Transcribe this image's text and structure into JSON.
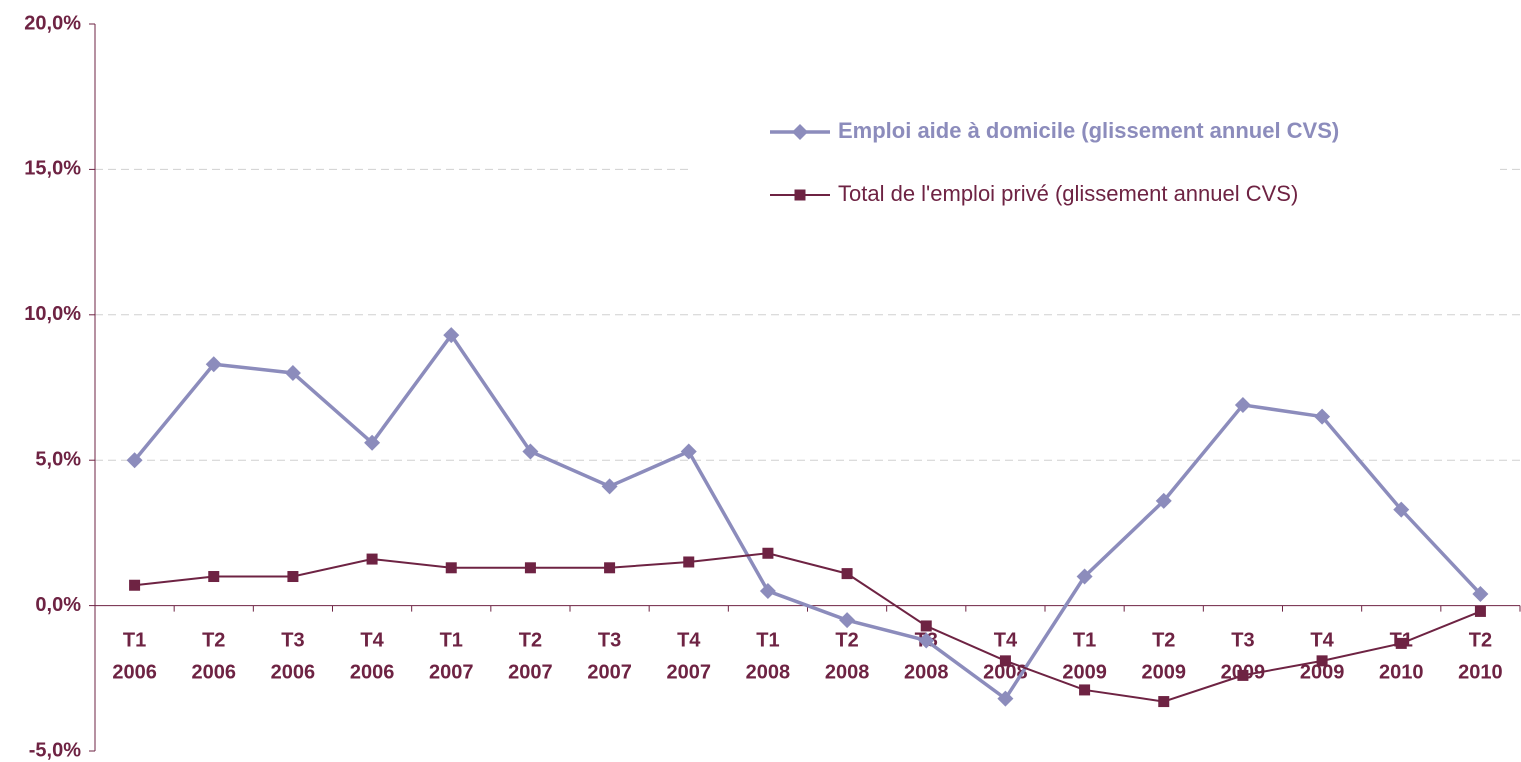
{
  "chart_data": {
    "type": "line",
    "categories": [
      [
        "T1",
        "2006"
      ],
      [
        "T2",
        "2006"
      ],
      [
        "T3",
        "2006"
      ],
      [
        "T4",
        "2006"
      ],
      [
        "T1",
        "2007"
      ],
      [
        "T2",
        "2007"
      ],
      [
        "T3",
        "2007"
      ],
      [
        "T4",
        "2007"
      ],
      [
        "T1",
        "2008"
      ],
      [
        "T2",
        "2008"
      ],
      [
        "T3",
        "2008"
      ],
      [
        "T4",
        "2008"
      ],
      [
        "T1",
        "2009"
      ],
      [
        "T2",
        "2009"
      ],
      [
        "T3",
        "2009"
      ],
      [
        "T4",
        "2009"
      ],
      [
        "T1",
        "2010"
      ],
      [
        "T2",
        "2010"
      ]
    ],
    "series": [
      {
        "name": "Emploi aide à domicile (glissement annuel CVS)",
        "color": "#8c8cbc",
        "marker": "diamond",
        "values": [
          5.0,
          8.3,
          8.0,
          5.6,
          9.3,
          5.3,
          4.1,
          5.3,
          0.5,
          -0.5,
          -1.2,
          -3.2,
          1.0,
          3.6,
          6.9,
          6.5,
          3.3,
          0.4
        ]
      },
      {
        "name": "Total de l'emploi privé (glissement annuel CVS)",
        "color": "#6e2343",
        "marker": "square",
        "values": [
          0.7,
          1.0,
          1.0,
          1.6,
          1.3,
          1.3,
          1.3,
          1.5,
          1.8,
          1.1,
          -0.7,
          -1.9,
          -2.9,
          -3.3,
          -2.4,
          -1.9,
          -1.3,
          -0.2
        ]
      }
    ],
    "ylim": [
      -5,
      20
    ],
    "yticks": [
      {
        "value": -5,
        "label": "-5,0%"
      },
      {
        "value": 0,
        "label": "0,0%"
      },
      {
        "value": 5,
        "label": "5,0%"
      },
      {
        "value": 10,
        "label": "10,0%"
      },
      {
        "value": 15,
        "label": "15,0%"
      },
      {
        "value": 20,
        "label": "20,0%"
      }
    ],
    "grid": true
  }
}
